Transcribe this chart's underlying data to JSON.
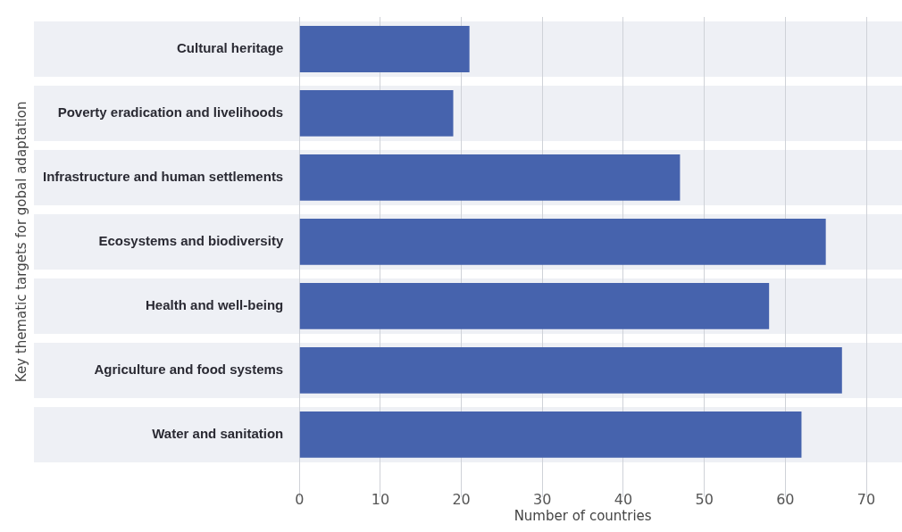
{
  "chart_data": {
    "type": "bar",
    "orientation": "horizontal",
    "categories": [
      "Cultural heritage",
      "Poverty eradication and livelihoods",
      "Infrastructure and human settlements",
      "Ecosystems and biodiversity",
      "Health and well-being",
      "Agriculture and food systems",
      "Water and sanitation"
    ],
    "values": [
      21,
      19,
      47,
      65,
      58,
      67,
      62
    ],
    "color": "#4663ad",
    "xlabel": "Number of countries",
    "ylabel": "Key thematic targets for gobal adaptation",
    "xlim": [
      0,
      70
    ],
    "xticks": [
      0,
      10,
      20,
      30,
      40,
      50,
      60,
      70
    ],
    "grid": "x",
    "legend": false
  }
}
